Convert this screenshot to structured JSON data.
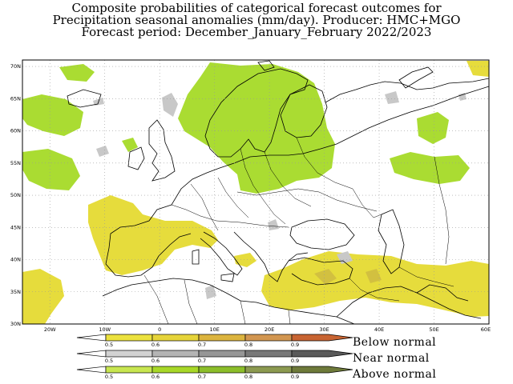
{
  "title": {
    "line1": "Composite probabilities of categorical forecast outcomes for",
    "line2": "Precipitation seasonal anomalies (mm/day). Producer: HMC+MGO",
    "line3": "Forecast period: December_January_February 2022/2023"
  },
  "map": {
    "lat_labels": [
      "70N",
      "65N",
      "60N",
      "55N",
      "50N",
      "45N",
      "40N",
      "35N",
      "30N"
    ],
    "lon_labels": [
      "20W",
      "10W",
      "0",
      "10E",
      "20E",
      "30E",
      "40E",
      "50E",
      "60E"
    ],
    "lat_range": [
      30,
      71
    ],
    "lon_range": [
      -25,
      60
    ],
    "colors": {
      "below": "#e6dc3c",
      "near": "#c8c8c8",
      "above": "#aadc32",
      "coast": "#000000",
      "grid": "#999999"
    }
  },
  "legend": {
    "below": {
      "label": "Below normal",
      "ticks": [
        "0.5",
        "0.6",
        "0.7",
        "0.8",
        "0.9"
      ],
      "colors": [
        "#ece23e",
        "#e6d43a",
        "#dcb43e",
        "#d29650",
        "#c86432"
      ]
    },
    "near": {
      "label": "Near normal",
      "ticks": [
        "0.5",
        "0.6",
        "0.7",
        "0.8",
        "0.9"
      ],
      "colors": [
        "#d2d2d2",
        "#b4b4b4",
        "#969696",
        "#787878",
        "#5a5a5a"
      ]
    },
    "above": {
      "label": "Above normal",
      "ticks": [
        "0.5",
        "0.6",
        "0.7",
        "0.8",
        "0.9"
      ],
      "colors": [
        "#c8e650",
        "#a8d828",
        "#8cbe2a",
        "#8c9a50",
        "#6e7a3a"
      ]
    }
  }
}
